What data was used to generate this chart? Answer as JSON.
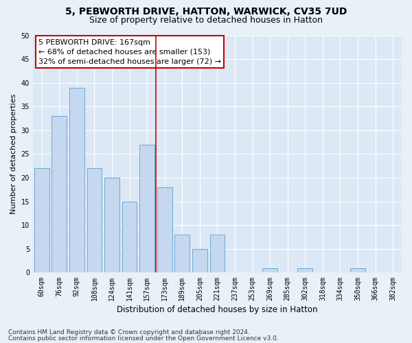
{
  "title1": "5, PEBWORTH DRIVE, HATTON, WARWICK, CV35 7UD",
  "title2": "Size of property relative to detached houses in Hatton",
  "xlabel": "Distribution of detached houses by size in Hatton",
  "ylabel": "Number of detached properties",
  "categories": [
    "60sqm",
    "76sqm",
    "92sqm",
    "108sqm",
    "124sqm",
    "141sqm",
    "157sqm",
    "173sqm",
    "189sqm",
    "205sqm",
    "221sqm",
    "237sqm",
    "253sqm",
    "269sqm",
    "285sqm",
    "302sqm",
    "318sqm",
    "334sqm",
    "350sqm",
    "366sqm",
    "382sqm"
  ],
  "values": [
    22,
    33,
    39,
    22,
    20,
    15,
    27,
    18,
    8,
    5,
    8,
    0,
    0,
    1,
    0,
    1,
    0,
    0,
    1,
    0,
    0
  ],
  "bar_color": "#c5d8ef",
  "bar_edge_color": "#6aaad4",
  "background_color": "#dce8f5",
  "fig_background_color": "#e8f0f8",
  "grid_color": "#ffffff",
  "vline_color": "#cc0000",
  "vline_index": 7,
  "annotation_text1": "5 PEBWORTH DRIVE: 167sqm",
  "annotation_text2": "← 68% of detached houses are smaller (153)",
  "annotation_text3": "32% of semi-detached houses are larger (72) →",
  "box_edge_color": "#cc0000",
  "ylim": [
    0,
    50
  ],
  "yticks": [
    0,
    5,
    10,
    15,
    20,
    25,
    30,
    35,
    40,
    45,
    50
  ],
  "footnote1": "Contains HM Land Registry data © Crown copyright and database right 2024.",
  "footnote2": "Contains public sector information licensed under the Open Government Licence v3.0.",
  "title1_fontsize": 10,
  "title2_fontsize": 9,
  "annotation_fontsize": 8,
  "tick_fontsize": 7,
  "xlabel_fontsize": 8.5,
  "ylabel_fontsize": 8,
  "footnote_fontsize": 6.5
}
